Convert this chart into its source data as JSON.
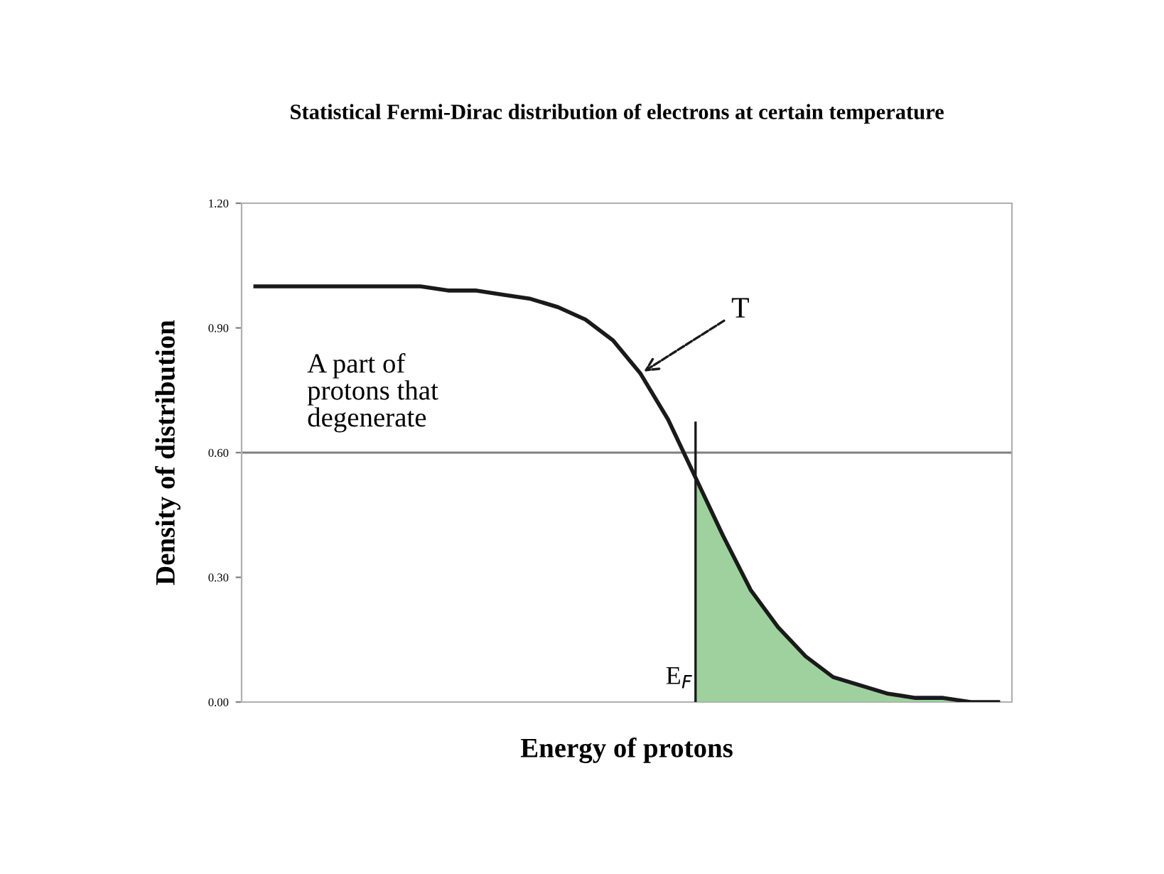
{
  "chart_data": {
    "type": "line",
    "title": "Statistical Fermi-Dirac distribution of electrons at certain temperature",
    "xlabel": "Energy of protons",
    "ylabel": "Density of distribution",
    "categories": [
      null,
      null,
      null,
      null,
      null,
      null,
      null,
      null,
      null,
      null,
      null,
      null,
      null,
      null,
      null,
      null,
      null,
      null,
      null,
      null,
      null,
      null,
      null,
      null,
      null,
      null,
      null,
      null
    ],
    "series": [
      {
        "color": "#1a1a1a",
        "values": [
          1.0,
          1.0,
          1.0,
          1.0,
          1.0,
          1.0,
          1.0,
          0.99,
          0.99,
          0.98,
          0.97,
          0.95,
          0.92,
          0.87,
          0.79,
          0.68,
          0.54,
          0.4,
          0.27,
          0.18,
          0.11,
          0.06,
          0.04,
          0.02,
          0.01,
          0.01,
          0.0,
          0.0
        ]
      },
      {
        "type": "area",
        "color": "#9fd19f",
        "values": [
          null,
          null,
          null,
          null,
          null,
          null,
          null,
          null,
          null,
          null,
          null,
          null,
          null,
          null,
          null,
          null,
          0.54,
          0.4,
          0.27,
          0.18,
          0.11,
          0.06,
          0.04,
          0.02,
          0.01,
          0.01,
          0.0,
          0.0
        ]
      }
    ],
    "ylim": [
      0,
      1.2
    ],
    "yticks": [
      {
        "value": 0,
        "label": "0.00"
      },
      {
        "value": 0.3,
        "label": "0.30"
      },
      {
        "value": 0.6,
        "label": "0.60"
      },
      {
        "value": 0.9,
        "label": "0.90"
      },
      {
        "value": 1.2,
        "label": "1.20"
      }
    ],
    "tick_labels": "y",
    "grid": false,
    "marker": "none",
    "line_style": "solid",
    "ref_lines": [
      {
        "axis": "y",
        "value": 0.6,
        "label": null,
        "color": "#808080"
      }
    ],
    "annotations": [
      "A part of\nprotons that\ndegenerate",
      "T",
      "E$_{F}$"
    ]
  }
}
